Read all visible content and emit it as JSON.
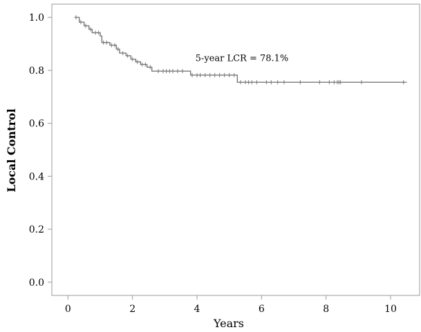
{
  "chart_data": {
    "type": "line",
    "title": "",
    "xlabel": "Years",
    "ylabel": "Local Control",
    "xlim": [
      -0.5,
      10.9
    ],
    "ylim": [
      -0.05,
      1.05
    ],
    "xticks": [
      0,
      2,
      4,
      6,
      8,
      10
    ],
    "yticks": [
      0.0,
      0.2,
      0.4,
      0.6,
      0.8,
      1.0
    ],
    "xtick_labels": [
      "0",
      "2",
      "4",
      "6",
      "8",
      "10"
    ],
    "ytick_labels": [
      "0.0",
      "0.2",
      "0.4",
      "0.6",
      "0.8",
      "1.0"
    ],
    "grid": false,
    "line_color": "#777777",
    "series": [
      {
        "step_points": [
          [
            0.2,
            1.0
          ],
          [
            0.35,
            0.982
          ],
          [
            0.5,
            0.968
          ],
          [
            0.65,
            0.955
          ],
          [
            0.75,
            0.942
          ],
          [
            1.0,
            0.93
          ],
          [
            1.05,
            0.905
          ],
          [
            1.3,
            0.895
          ],
          [
            1.5,
            0.88
          ],
          [
            1.6,
            0.865
          ],
          [
            1.8,
            0.855
          ],
          [
            1.95,
            0.842
          ],
          [
            2.1,
            0.832
          ],
          [
            2.25,
            0.822
          ],
          [
            2.45,
            0.812
          ],
          [
            2.6,
            0.797
          ],
          [
            3.8,
            0.782
          ],
          [
            5.25,
            0.755
          ],
          [
            10.5,
            0.755
          ]
        ],
        "censor_times": [
          0.25,
          0.4,
          0.55,
          0.7,
          0.85,
          0.95,
          1.1,
          1.2,
          1.35,
          1.45,
          1.55,
          1.7,
          1.85,
          2.0,
          2.15,
          2.3,
          2.4,
          2.55,
          2.8,
          2.95,
          3.05,
          3.15,
          3.25,
          3.4,
          3.55,
          3.85,
          4.0,
          4.1,
          4.25,
          4.4,
          4.55,
          4.7,
          4.85,
          5.0,
          5.15,
          5.35,
          5.5,
          5.6,
          5.7,
          5.85,
          6.15,
          6.3,
          6.5,
          6.7,
          7.2,
          7.8,
          8.1,
          8.25,
          8.35,
          8.4,
          8.45,
          9.1,
          10.4
        ]
      }
    ],
    "annotations": [
      {
        "text": "5-year LCR = 78.1%",
        "x": 3.95,
        "y": 0.835
      }
    ]
  }
}
